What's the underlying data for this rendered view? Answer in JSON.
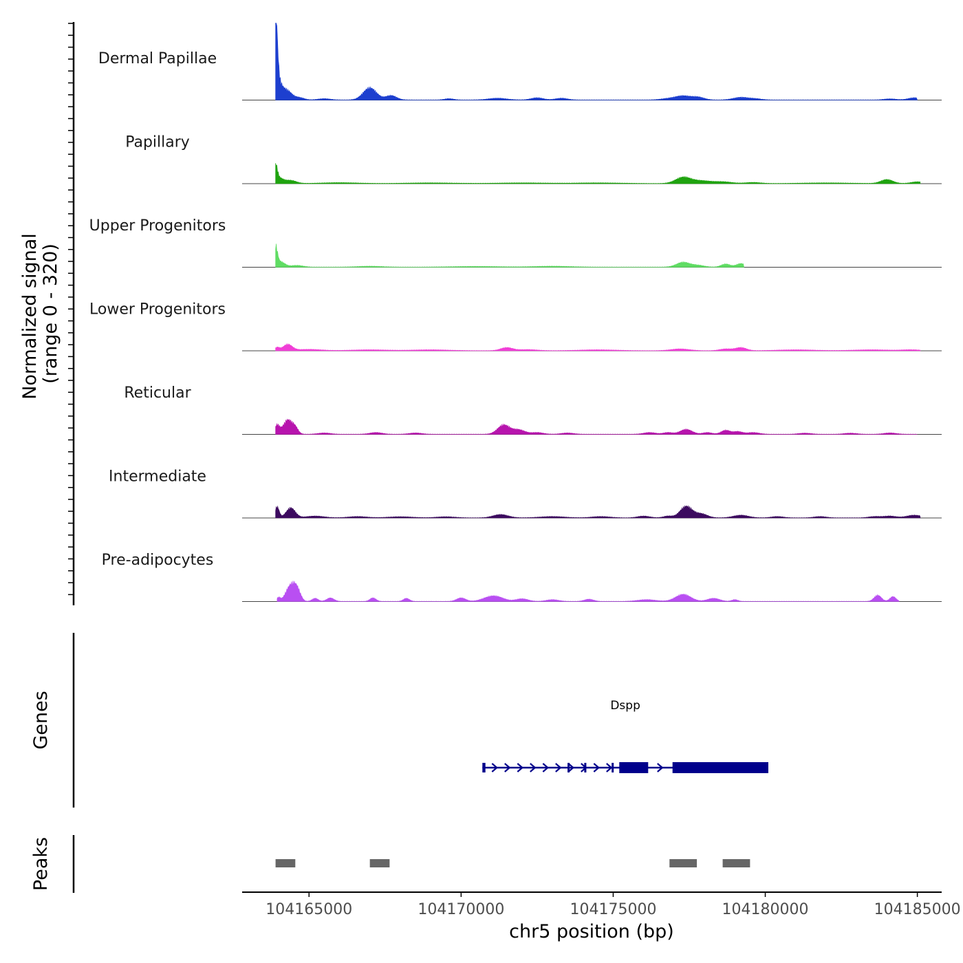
{
  "chart_data": {
    "type": "area",
    "title": "",
    "signal_axis": {
      "label_line1": "Normalized signal",
      "label_line2": "(range 0 - 320)",
      "ylim": [
        0,
        320
      ]
    },
    "x_axis": {
      "label": "chr5 position (bp)",
      "xlim": [
        104162800,
        104185800
      ],
      "ticks": [
        104165000,
        104170000,
        104175000,
        104180000,
        104185000
      ],
      "tick_labels": [
        "104165000",
        "104170000",
        "104175000",
        "104180000",
        "104185000"
      ]
    },
    "tracks": [
      {
        "name": "Dermal Papillae",
        "color": "#1d3fcf",
        "clip": [
          104163900,
          104185000
        ],
        "peaks": [
          [
            104163900,
            320,
            60
          ],
          [
            104163960,
            80,
            120
          ],
          [
            104164250,
            45,
            180
          ],
          [
            104164700,
            10,
            150
          ],
          [
            104165500,
            6,
            200
          ],
          [
            104167000,
            55,
            220
          ],
          [
            104167700,
            20,
            180
          ],
          [
            104169600,
            6,
            150
          ],
          [
            104171200,
            8,
            300
          ],
          [
            104172500,
            10,
            200
          ],
          [
            104173300,
            8,
            200
          ],
          [
            104176800,
            6,
            250
          ],
          [
            104177300,
            18,
            250
          ],
          [
            104177800,
            12,
            200
          ],
          [
            104179200,
            12,
            250
          ],
          [
            104179700,
            5,
            200
          ],
          [
            104184100,
            5,
            200
          ],
          [
            104184900,
            10,
            200
          ]
        ]
      },
      {
        "name": "Papillary",
        "color": "#1fa30f",
        "clip": [
          104163900,
          104185100
        ],
        "peaks": [
          [
            104163900,
            70,
            60
          ],
          [
            104164000,
            25,
            150
          ],
          [
            104164400,
            14,
            180
          ],
          [
            104166000,
            4,
            600
          ],
          [
            104169000,
            3,
            800
          ],
          [
            104172000,
            3,
            800
          ],
          [
            104174500,
            3,
            800
          ],
          [
            104177300,
            28,
            250
          ],
          [
            104177900,
            12,
            300
          ],
          [
            104178600,
            8,
            300
          ],
          [
            104179600,
            5,
            250
          ],
          [
            104182000,
            3,
            800
          ],
          [
            104184000,
            18,
            200
          ],
          [
            104185000,
            8,
            200
          ]
        ]
      },
      {
        "name": "Upper Progenitors",
        "color": "#5fdc63",
        "clip": [
          104163900,
          104179300
        ],
        "peaks": [
          [
            104163900,
            85,
            60
          ],
          [
            104164050,
            25,
            150
          ],
          [
            104164600,
            8,
            200
          ],
          [
            104167000,
            4,
            400
          ],
          [
            104170500,
            3,
            800
          ],
          [
            104173000,
            4,
            600
          ],
          [
            104177300,
            22,
            220
          ],
          [
            104177800,
            8,
            200
          ],
          [
            104178700,
            14,
            150
          ],
          [
            104179200,
            16,
            150
          ]
        ]
      },
      {
        "name": "Lower Progenitors",
        "color": "#f03ed6",
        "clip": [
          104163900,
          104185100
        ],
        "peaks": [
          [
            104163950,
            14,
            80
          ],
          [
            104164300,
            28,
            150
          ],
          [
            104165000,
            6,
            400
          ],
          [
            104167000,
            4,
            600
          ],
          [
            104169000,
            4,
            600
          ],
          [
            104171500,
            14,
            200
          ],
          [
            104172200,
            5,
            300
          ],
          [
            104174500,
            4,
            600
          ],
          [
            104177200,
            8,
            300
          ],
          [
            104178700,
            8,
            200
          ],
          [
            104179200,
            14,
            180
          ],
          [
            104181000,
            4,
            600
          ],
          [
            104183500,
            4,
            600
          ],
          [
            104184800,
            4,
            300
          ]
        ]
      },
      {
        "name": "Reticular",
        "color": "#b714ad",
        "clip": [
          104163900,
          104185000
        ],
        "peaks": [
          [
            104163950,
            40,
            80
          ],
          [
            104164300,
            65,
            150
          ],
          [
            104164550,
            25,
            100
          ],
          [
            104165500,
            6,
            200
          ],
          [
            104167200,
            8,
            200
          ],
          [
            104168500,
            6,
            200
          ],
          [
            104171400,
            42,
            200
          ],
          [
            104171900,
            20,
            200
          ],
          [
            104172500,
            8,
            200
          ],
          [
            104173500,
            6,
            200
          ],
          [
            104176200,
            8,
            200
          ],
          [
            104176800,
            8,
            150
          ],
          [
            104177400,
            22,
            200
          ],
          [
            104178100,
            8,
            150
          ],
          [
            104178700,
            18,
            150
          ],
          [
            104179100,
            12,
            150
          ],
          [
            104179600,
            8,
            200
          ],
          [
            104181300,
            5,
            200
          ],
          [
            104182800,
            5,
            200
          ],
          [
            104184100,
            6,
            200
          ]
        ]
      },
      {
        "name": "Intermediate",
        "color": "#3c0a5f",
        "clip": [
          104163900,
          104185100
        ],
        "peaks": [
          [
            104163950,
            50,
            70
          ],
          [
            104164400,
            45,
            150
          ],
          [
            104165200,
            8,
            300
          ],
          [
            104166600,
            6,
            300
          ],
          [
            104168000,
            5,
            400
          ],
          [
            104169500,
            5,
            300
          ],
          [
            104171300,
            15,
            250
          ],
          [
            104173000,
            6,
            400
          ],
          [
            104174600,
            6,
            300
          ],
          [
            104176000,
            8,
            200
          ],
          [
            104176800,
            8,
            150
          ],
          [
            104177400,
            52,
            200
          ],
          [
            104177900,
            18,
            200
          ],
          [
            104179200,
            12,
            250
          ],
          [
            104180400,
            6,
            200
          ],
          [
            104181800,
            6,
            200
          ],
          [
            104183600,
            6,
            200
          ],
          [
            104184100,
            8,
            200
          ],
          [
            104184900,
            12,
            250
          ]
        ]
      },
      {
        "name": "Pre-adipocytes",
        "color": "#b94ff2",
        "clip": [
          104163950,
          104184400
        ],
        "peaks": [
          [
            104164000,
            18,
            60
          ],
          [
            104164300,
            40,
            120
          ],
          [
            104164500,
            68,
            130
          ],
          [
            104164650,
            25,
            100
          ],
          [
            104165200,
            14,
            100
          ],
          [
            104165700,
            16,
            120
          ],
          [
            104167100,
            16,
            100
          ],
          [
            104168200,
            14,
            100
          ],
          [
            104170000,
            16,
            150
          ],
          [
            104170900,
            14,
            250
          ],
          [
            104171200,
            16,
            250
          ],
          [
            104172000,
            12,
            200
          ],
          [
            104173000,
            8,
            200
          ],
          [
            104174200,
            10,
            150
          ],
          [
            104176100,
            8,
            300
          ],
          [
            104177300,
            32,
            250
          ],
          [
            104178300,
            14,
            200
          ],
          [
            104179000,
            8,
            100
          ],
          [
            104183700,
            28,
            120
          ],
          [
            104184200,
            22,
            100
          ]
        ]
      }
    ],
    "genes": [
      {
        "name": "Dspp",
        "strand": "+",
        "start": 104170700,
        "end": 104180100,
        "exons": [
          [
            104170700,
            104170800
          ],
          [
            104173500,
            104173560
          ],
          [
            104174050,
            104174100
          ],
          [
            104174950,
            104175000
          ],
          [
            104175200,
            104176150
          ],
          [
            104176950,
            104180100
          ]
        ]
      }
    ],
    "peaks": [
      [
        104163900,
        104164550
      ],
      [
        104167000,
        104167650
      ],
      [
        104176850,
        104177750
      ],
      [
        104178600,
        104179500
      ]
    ]
  },
  "labels": {
    "genes_axis": "Genes",
    "peaks_axis": "Peaks"
  },
  "colors": {
    "gene": "#00008b",
    "peak": "#666666",
    "axis": "#000000",
    "baseline": "#444444",
    "tick_text": "#4d4d4d"
  }
}
